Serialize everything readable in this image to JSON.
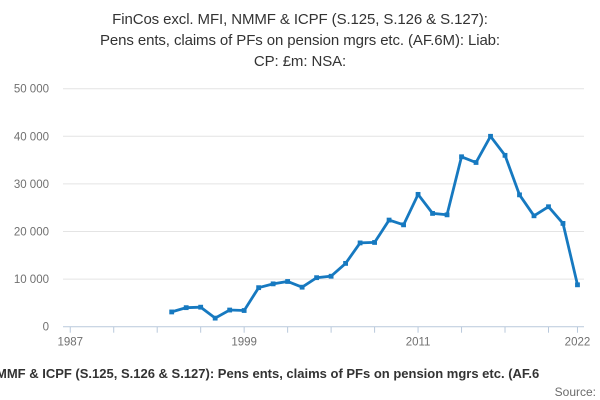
{
  "title": {
    "lines": [
      "FinCos excl. MFI, NMMF & ICPF (S.125, S.126 & S.127):",
      "Pens ents, claims of PFs on pension mgrs etc. (AF.6M): Liab:",
      "CP: £m: NSA:"
    ]
  },
  "footer": {
    "series_label": "MMF & ICPF (S.125, S.126 & S.127): Pens ents, claims of PFs on pension mgrs etc. (AF.6",
    "source_label": "Source:"
  },
  "chart_data": {
    "type": "line",
    "title": "FinCos excl. MFI, NMMF & ICPF (S.125, S.126 & S.127): Pens ents, claims of PFs on pension mgrs etc. (AF.6M): Liab: CP: £m: NSA:",
    "unit": "£m",
    "x": [
      1994,
      1995,
      1996,
      1997,
      1998,
      1999,
      2000,
      2001,
      2002,
      2003,
      2004,
      2005,
      2006,
      2007,
      2008,
      2009,
      2010,
      2011,
      2012,
      2013,
      2014,
      2015,
      2016,
      2017,
      2018,
      2019,
      2020,
      2021,
      2022
    ],
    "values": [
      3100,
      4000,
      4100,
      1800,
      3500,
      3400,
      8200,
      9000,
      9500,
      8300,
      10300,
      10600,
      13300,
      17600,
      17700,
      22400,
      21400,
      27800,
      23800,
      23500,
      35700,
      34500,
      40000,
      36000,
      27700,
      23300,
      25200,
      21700,
      8800
    ],
    "xlim": [
      1986.5,
      2022.45
    ],
    "ylim": [
      0,
      50000
    ],
    "ytick_values": [
      0,
      10000,
      20000,
      30000,
      40000,
      50000
    ],
    "ytick_labels": [
      "0",
      "10 000",
      "20 000",
      "30 000",
      "40 000",
      "50 000"
    ],
    "xtick_values": [
      1987,
      1990,
      1993,
      1996,
      1999,
      2002,
      2005,
      2008,
      2011,
      2014,
      2017,
      2020,
      2022
    ],
    "xtick_labels": [
      {
        "value": 1987,
        "label": "1987"
      },
      {
        "value": 1999,
        "label": "1999"
      },
      {
        "value": 2011,
        "label": "2011"
      },
      {
        "value": 2022,
        "label": "2022"
      }
    ],
    "grid": true,
    "legend": false,
    "marker": "square",
    "colors": {
      "line": "#1679c0",
      "grid": "#e4e4e4",
      "axis": "#b9c9dc",
      "tick_label": "#707070",
      "title_text": "#333333"
    }
  }
}
